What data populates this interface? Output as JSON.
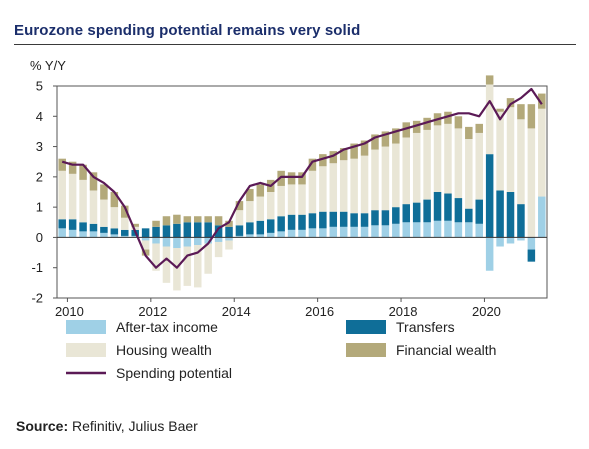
{
  "title": "Eurozone spending potential remains very solid",
  "source": {
    "label": "Source:",
    "text": " Refinitiv, Julius Baer"
  },
  "chart_data": {
    "type": "bar",
    "ylabel": "% Y/Y",
    "xlabel": "",
    "ylim": [
      -2,
      5
    ],
    "yticks": [
      -2,
      -1,
      0,
      1,
      2,
      3,
      4,
      5
    ],
    "xticks": [
      "2010",
      "2012",
      "2014",
      "2016",
      "2018",
      "2020"
    ],
    "x": [
      "2009Q4",
      "2010Q1",
      "2010Q2",
      "2010Q3",
      "2010Q4",
      "2011Q1",
      "2011Q2",
      "2011Q3",
      "2011Q4",
      "2012Q1",
      "2012Q2",
      "2012Q3",
      "2012Q4",
      "2013Q1",
      "2013Q2",
      "2013Q3",
      "2013Q4",
      "2014Q1",
      "2014Q2",
      "2014Q3",
      "2014Q4",
      "2015Q1",
      "2015Q2",
      "2015Q3",
      "2015Q4",
      "2016Q1",
      "2016Q2",
      "2016Q3",
      "2016Q4",
      "2017Q1",
      "2017Q2",
      "2017Q3",
      "2017Q4",
      "2018Q1",
      "2018Q2",
      "2018Q3",
      "2018Q4",
      "2019Q1",
      "2019Q2",
      "2019Q3",
      "2019Q4",
      "2020Q1",
      "2020Q2",
      "2020Q3",
      "2020Q4",
      "2021Q1",
      "2021Q2"
    ],
    "grid": false,
    "legend_position": "bottom",
    "series": [
      {
        "name": "After-tax income",
        "color": "#9fd0e6",
        "kind": "bar",
        "values": [
          0.3,
          0.25,
          0.2,
          0.2,
          0.15,
          0.1,
          0.05,
          0.05,
          -0.1,
          -0.2,
          -0.3,
          -0.35,
          -0.3,
          -0.25,
          -0.2,
          -0.15,
          -0.1,
          0.05,
          0.1,
          0.1,
          0.15,
          0.2,
          0.25,
          0.25,
          0.3,
          0.3,
          0.35,
          0.35,
          0.35,
          0.35,
          0.4,
          0.4,
          0.45,
          0.5,
          0.5,
          0.5,
          0.55,
          0.55,
          0.5,
          0.5,
          0.45,
          -1.1,
          -0.3,
          -0.2,
          -0.1,
          -0.4,
          1.35
        ]
      },
      {
        "name": "Transfers",
        "color": "#0f6e98",
        "kind": "bar",
        "values": [
          0.3,
          0.35,
          0.3,
          0.25,
          0.2,
          0.2,
          0.2,
          0.2,
          0.3,
          0.35,
          0.4,
          0.45,
          0.5,
          0.5,
          0.5,
          0.4,
          0.35,
          0.35,
          0.4,
          0.45,
          0.45,
          0.5,
          0.5,
          0.5,
          0.5,
          0.55,
          0.5,
          0.5,
          0.45,
          0.45,
          0.5,
          0.5,
          0.55,
          0.6,
          0.65,
          0.75,
          0.95,
          0.9,
          0.8,
          0.45,
          0.8,
          2.75,
          1.55,
          1.5,
          1.1,
          -0.4,
          0.0
        ]
      },
      {
        "name": "Housing wealth",
        "color": "#e9e6d6",
        "kind": "bar",
        "values": [
          1.6,
          1.5,
          1.4,
          1.1,
          0.9,
          0.7,
          0.4,
          0.1,
          -0.3,
          -0.9,
          -1.2,
          -1.4,
          -1.3,
          -1.4,
          -1.0,
          -0.5,
          -0.3,
          0.5,
          0.7,
          0.8,
          0.9,
          1.0,
          1.0,
          1.0,
          1.4,
          1.5,
          1.6,
          1.7,
          1.8,
          1.9,
          2.0,
          2.1,
          2.1,
          2.2,
          2.3,
          2.3,
          2.2,
          2.3,
          2.3,
          2.3,
          2.2,
          2.3,
          2.6,
          2.8,
          2.8,
          3.6,
          2.9
        ]
      },
      {
        "name": "Financial wealth",
        "color": "#b3a97a",
        "kind": "bar",
        "values": [
          0.4,
          0.4,
          0.5,
          0.6,
          0.5,
          0.5,
          0.4,
          0.1,
          -0.2,
          0.2,
          0.3,
          0.3,
          0.2,
          0.2,
          0.2,
          0.3,
          0.2,
          0.3,
          0.4,
          0.4,
          0.4,
          0.5,
          0.4,
          0.4,
          0.4,
          0.4,
          0.4,
          0.4,
          0.5,
          0.5,
          0.5,
          0.5,
          0.5,
          0.5,
          0.4,
          0.4,
          0.4,
          0.4,
          0.4,
          0.4,
          0.3,
          0.3,
          0.1,
          0.3,
          0.5,
          0.8,
          0.5
        ]
      },
      {
        "name": "Spending potential",
        "color": "#5b1a56",
        "kind": "line",
        "values": [
          2.5,
          2.4,
          2.4,
          2.0,
          1.8,
          1.5,
          1.0,
          0.2,
          -0.6,
          -1.0,
          -0.7,
          -1.0,
          -0.6,
          -0.5,
          -0.2,
          0.3,
          0.5,
          1.2,
          1.7,
          1.8,
          1.7,
          2.0,
          2.0,
          2.0,
          2.5,
          2.6,
          2.7,
          2.9,
          3.0,
          3.1,
          3.3,
          3.4,
          3.5,
          3.6,
          3.7,
          3.8,
          3.9,
          4.0,
          4.1,
          4.1,
          4.0,
          4.5,
          3.9,
          4.4,
          4.6,
          4.9,
          4.4
        ]
      }
    ]
  }
}
